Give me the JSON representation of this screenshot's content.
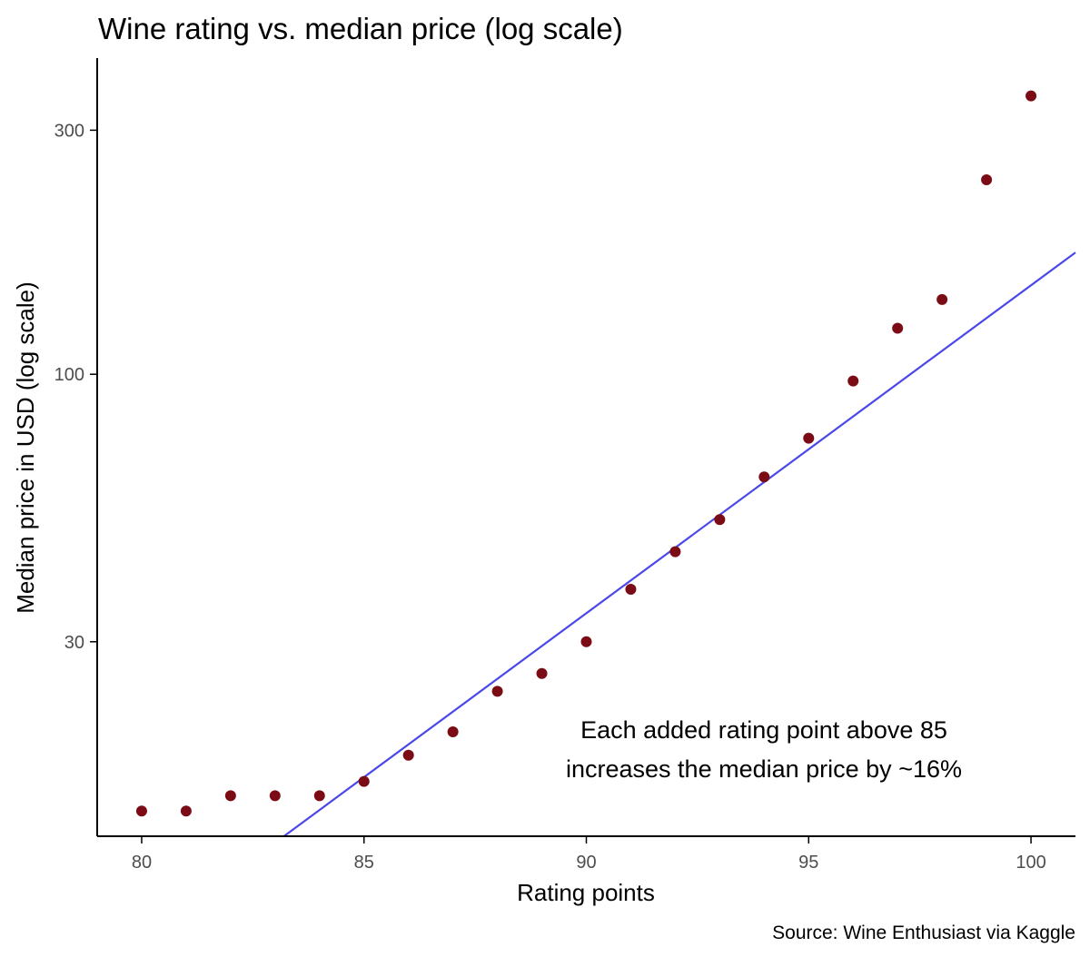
{
  "chart_data": {
    "type": "scatter",
    "title": "Wine rating vs. median price (log scale)",
    "xlabel": "Rating points",
    "ylabel": "Median price in USD (log scale)",
    "caption": "Source: Wine Enthusiast via Kaggle",
    "annotation": [
      "Each added rating point above 85",
      "increases the median price by ~16%"
    ],
    "x_scale": "linear",
    "y_scale": "log",
    "xlim": [
      79,
      101
    ],
    "ylim": [
      12.5,
      415
    ],
    "x_ticks": [
      80,
      85,
      90,
      95,
      100
    ],
    "x_tick_labels": [
      "80",
      "85",
      "90",
      "95",
      "100"
    ],
    "y_ticks": [
      30,
      100,
      300
    ],
    "y_tick_labels": [
      "30",
      "100",
      "300"
    ],
    "grid": false,
    "colors": {
      "points": "#7b0c16",
      "fit_line": "#4a48e8",
      "axis": "#000000",
      "tick_label": "#4d4d4d"
    },
    "points": {
      "x": [
        80,
        81,
        82,
        83,
        84,
        85,
        86,
        87,
        88,
        89,
        90,
        91,
        92,
        93,
        94,
        95,
        96,
        97,
        98,
        99,
        100
      ],
      "y": [
        14,
        14,
        15,
        15,
        15,
        16,
        18,
        20,
        24,
        26,
        30,
        38,
        45,
        52,
        63,
        75,
        97,
        123,
        140,
        240,
        350
      ]
    },
    "fit_line": {
      "x": [
        83.2,
        101
      ],
      "y": [
        12.5,
        173
      ]
    }
  }
}
